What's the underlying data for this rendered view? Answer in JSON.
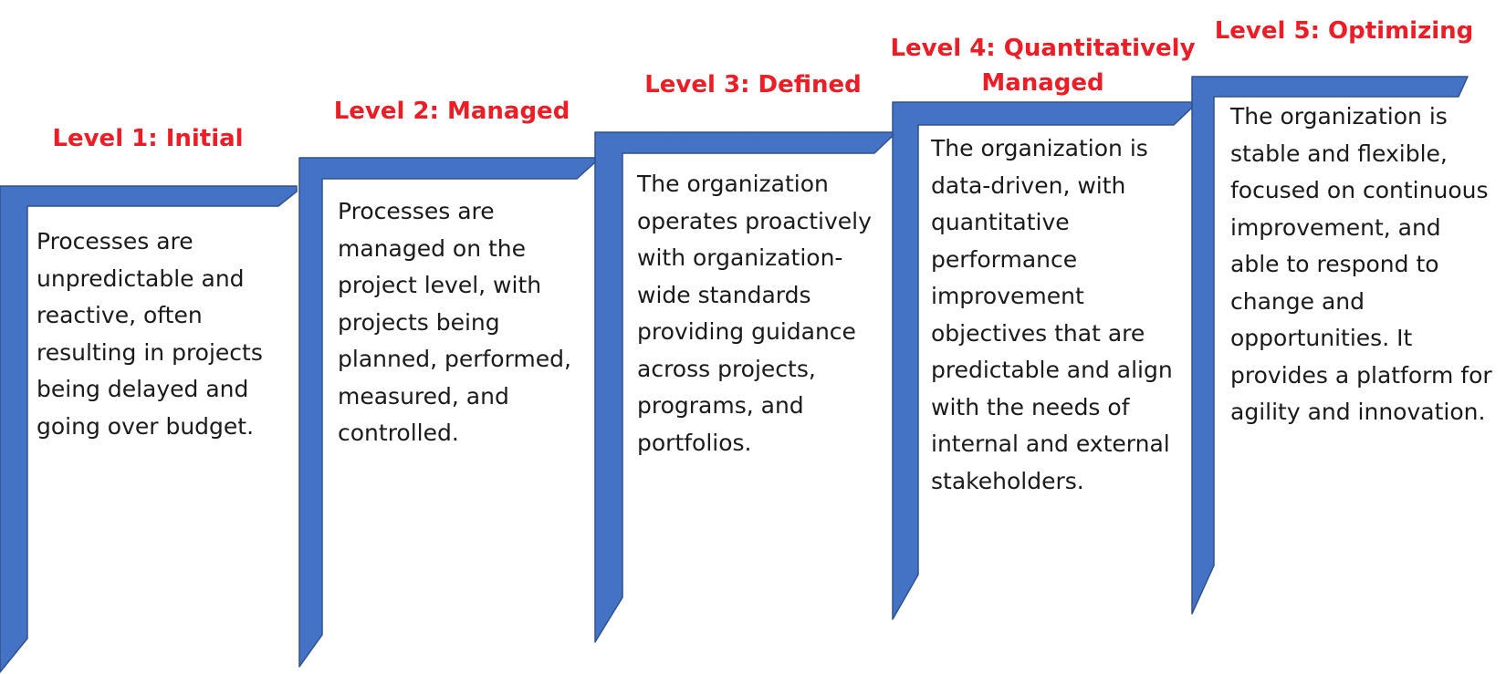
{
  "colors": {
    "stair_fill": "#4472c4",
    "stair_stroke": "#2f528f",
    "title_color": "#ee1c24",
    "text_color": "#1a1a1a"
  },
  "levels": [
    {
      "title": "Level 1: Initial",
      "description": "Processes are unpredictable and reactive, often resulting in projects being delayed and going over budget."
    },
    {
      "title": "Level 2: Managed",
      "description": "Processes are managed on the project level, with projects being planned, performed, measured, and controlled."
    },
    {
      "title": "Level 3: Defined",
      "description": "The organization operates proactively with organization-wide standards providing guidance across projects, programs, and portfolios."
    },
    {
      "title": "Level 4: Quantitatively Managed",
      "description": "The organization is data-driven, with quantitative performance improvement objectives that are predictable and align with the needs of internal and external stakeholders."
    },
    {
      "title": "Level 5: Optimizing",
      "description": "The organization is stable and flexible, focused on continuous improvement, and able to respond to change and opportunities. It provides a platform for agility and innovation."
    }
  ]
}
